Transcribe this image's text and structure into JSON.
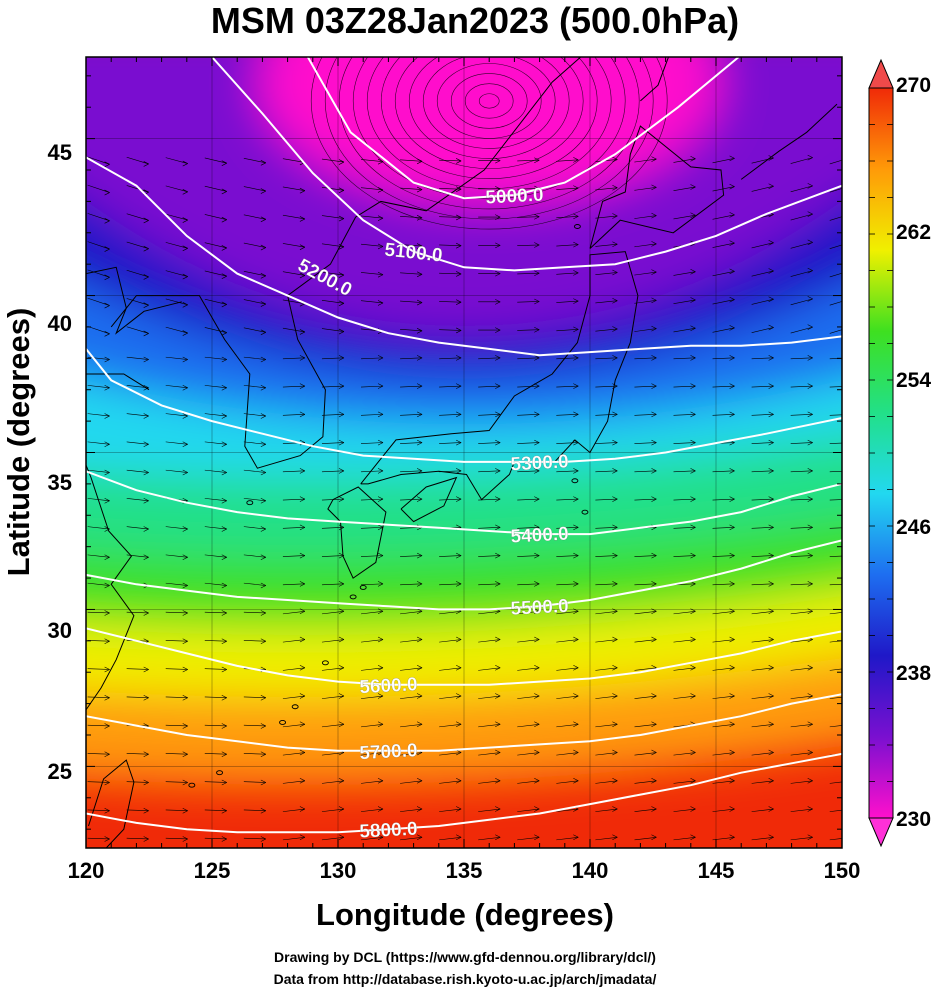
{
  "title": "MSM 03Z28Jan2023 (500.0hPa)",
  "axes": {
    "xlabel": "Longitude (degrees)",
    "ylabel": "Latitude  (degrees)",
    "xticks": [
      "120",
      "125",
      "130",
      "135",
      "140",
      "145",
      "150"
    ],
    "yticks": [
      "25",
      "30",
      "35",
      "40",
      "45"
    ],
    "xlim": [
      120,
      150
    ],
    "ylim": [
      22.4,
      47.6
    ]
  },
  "colorbar": {
    "ticks": [
      "230",
      "238",
      "246",
      "254",
      "262",
      "270"
    ],
    "range": [
      230,
      270
    ],
    "colors": [
      "#ff10cc",
      "#7a10d0",
      "#1f18c8",
      "#1e6ef0",
      "#22d8f0",
      "#22e088",
      "#3ee020",
      "#f0f000",
      "#ff9a08",
      "#f02a08"
    ]
  },
  "contours": {
    "color": "#ffffff",
    "labels": [
      "5000.0",
      "5100.0",
      "5200.0",
      "5300.0",
      "5400.0",
      "5500.0",
      "5600.0",
      "5700.0",
      "5800.0"
    ]
  },
  "credits": {
    "line1": "Drawing by DCL (https://www.gfd-dennou.org/library/dcl/)",
    "line2": "Data from http://database.rish.kyoto-u.ac.jp/arch/jmadata/"
  },
  "chart_data": {
    "type": "heatmap",
    "title": "MSM 03Z28Jan2023 (500.0hPa)",
    "xlabel": "Longitude (degrees)",
    "ylabel": "Latitude  (degrees)",
    "xlim": [
      120,
      150
    ],
    "ylim": [
      22.4,
      47.6
    ],
    "color_scale": {
      "min": 230,
      "max": 270,
      "ticks": [
        230,
        238,
        246,
        254,
        262,
        270
      ]
    },
    "contour_series": [
      {
        "label": "5000.0",
        "lon": [
          128.8,
          130.5,
          133,
          135,
          137,
          139,
          141,
          143.5,
          145.9
        ],
        "lat": [
          47.6,
          45.2,
          43.6,
          43.1,
          43.2,
          43.6,
          44.5,
          46.0,
          47.6
        ]
      },
      {
        "label": "5100.0",
        "lon": [
          125.0,
          127,
          129,
          131,
          133,
          135,
          137,
          139,
          141,
          143,
          145,
          147,
          150
        ],
        "lat": [
          47.6,
          45.8,
          43.9,
          42.4,
          41.4,
          40.9,
          40.8,
          40.9,
          41.0,
          41.4,
          41.9,
          42.6,
          43.5
        ]
      },
      {
        "label": "5200.0",
        "lon": [
          120,
          122,
          124,
          126,
          128,
          130,
          132,
          134,
          136,
          138,
          140,
          142,
          144,
          146,
          148,
          150
        ],
        "lat": [
          44.4,
          43.5,
          41.9,
          40.7,
          40.0,
          39.3,
          38.8,
          38.5,
          38.3,
          38.1,
          38.2,
          38.3,
          38.4,
          38.4,
          38.5,
          38.7
        ]
      },
      {
        "label": "5300.0",
        "lon": [
          120,
          121,
          123,
          125,
          127,
          129,
          131,
          133,
          135,
          137,
          139,
          141,
          143,
          145,
          147,
          150
        ],
        "lat": [
          38.3,
          37.3,
          36.5,
          36.0,
          35.6,
          35.2,
          34.9,
          34.8,
          34.7,
          34.7,
          34.7,
          34.8,
          35.0,
          35.3,
          35.6,
          36.1
        ]
      },
      {
        "label": "5400.0",
        "lon": [
          120,
          122,
          124,
          126,
          128,
          130,
          132,
          134,
          136,
          138,
          140,
          142,
          144,
          146,
          148,
          150
        ],
        "lat": [
          34.4,
          33.8,
          33.4,
          33.1,
          32.9,
          32.8,
          32.7,
          32.6,
          32.5,
          32.4,
          32.4,
          32.6,
          32.8,
          33.1,
          33.6,
          34.0
        ]
      },
      {
        "label": "5500.0",
        "lon": [
          120,
          122,
          124,
          126,
          128,
          130,
          132,
          134,
          136,
          138,
          140,
          142,
          144,
          146,
          148,
          150
        ],
        "lat": [
          31.1,
          30.8,
          30.6,
          30.4,
          30.3,
          30.2,
          30.1,
          30.0,
          30.0,
          30.1,
          30.3,
          30.6,
          30.9,
          31.3,
          31.8,
          32.2
        ]
      },
      {
        "label": "5600.0",
        "lon": [
          120,
          122,
          124,
          126,
          128,
          130,
          132,
          134,
          136,
          138,
          140,
          142,
          144,
          146,
          148,
          150
        ],
        "lat": [
          29.4,
          29.0,
          28.6,
          28.2,
          27.9,
          27.7,
          27.6,
          27.6,
          27.6,
          27.7,
          27.8,
          28.0,
          28.3,
          28.6,
          29.0,
          29.3
        ]
      },
      {
        "label": "5700.0",
        "lon": [
          120,
          122,
          124,
          126,
          128,
          130,
          132,
          134,
          136,
          138,
          140,
          142,
          144,
          146,
          148,
          150
        ],
        "lat": [
          26.6,
          26.3,
          26.0,
          25.8,
          25.6,
          25.5,
          25.5,
          25.5,
          25.6,
          25.7,
          25.8,
          26.0,
          26.3,
          26.6,
          27.0,
          27.3
        ]
      },
      {
        "label": "5800.0",
        "lon": [
          120,
          122,
          124,
          126,
          128,
          130,
          132,
          134,
          136,
          138,
          140,
          142,
          144,
          146,
          148,
          150
        ],
        "lat": [
          23.5,
          23.2,
          23.0,
          22.9,
          22.9,
          22.9,
          23.0,
          23.1,
          23.3,
          23.5,
          23.8,
          24.1,
          24.4,
          24.8,
          25.1,
          25.4
        ]
      }
    ],
    "vortex_center": {
      "lon": 136,
      "lat": 46.2
    }
  }
}
